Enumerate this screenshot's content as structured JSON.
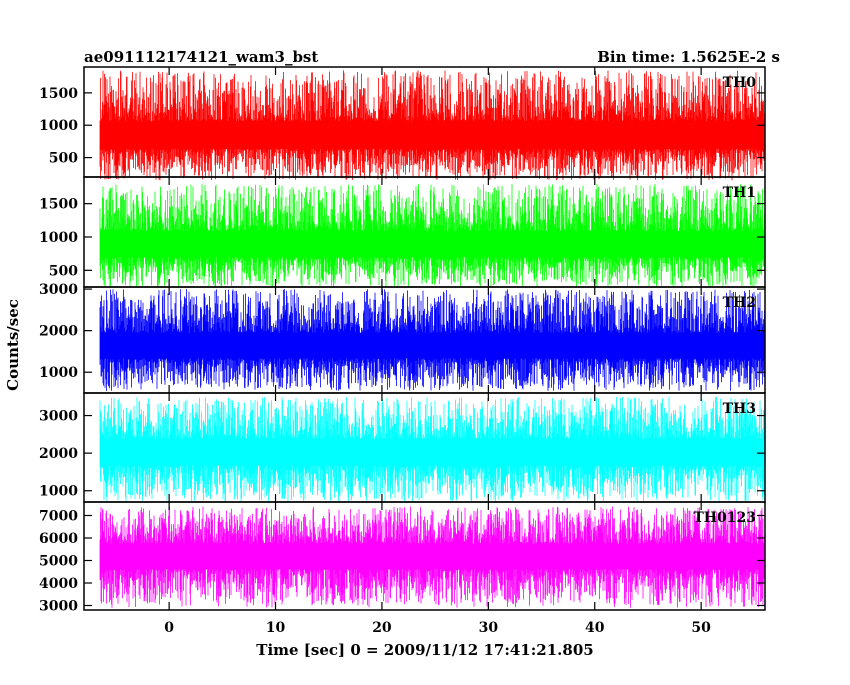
{
  "chart_data": {
    "type": "line",
    "title": "ae091112174121_wam3_bst",
    "subtitle": "Bin time: 1.5625E-2 s",
    "xlabel": "Time [sec] 0 = 2009/11/12 17:41:21.805",
    "ylabel": "Counts/sec",
    "xlim": [
      -8,
      56
    ],
    "x_ticks": [
      0,
      10,
      20,
      30,
      40,
      50
    ],
    "x_range_data": [
      -6.5,
      56
    ],
    "grid": false,
    "panels": [
      {
        "name": "TH0",
        "color": "#ff0000",
        "ylim": [
          200,
          1900
        ],
        "y_ticks": [
          500,
          1000,
          1500
        ],
        "min_value": 150,
        "max_value": 1850,
        "mean_value": 800
      },
      {
        "name": "TH1",
        "color": "#00ff00",
        "ylim": [
          250,
          1900
        ],
        "y_ticks": [
          500,
          1000,
          1500
        ],
        "min_value": 250,
        "max_value": 1800,
        "mean_value": 850
      },
      {
        "name": "TH2",
        "color": "#0000ff",
        "ylim": [
          500,
          3050
        ],
        "y_ticks": [
          1000,
          2000,
          3000
        ],
        "min_value": 550,
        "max_value": 3000,
        "mean_value": 1600
      },
      {
        "name": "TH3",
        "color": "#00ffff",
        "ylim": [
          700,
          3600
        ],
        "y_ticks": [
          1000,
          2000,
          3000
        ],
        "min_value": 700,
        "max_value": 3500,
        "mean_value": 2000
      },
      {
        "name": "TH0123",
        "color": "#ff00ff",
        "ylim": [
          2800,
          7600
        ],
        "y_ticks": [
          3000,
          4000,
          5000,
          6000,
          7000
        ],
        "min_value": 2900,
        "max_value": 7400,
        "mean_value": 5200
      }
    ]
  }
}
